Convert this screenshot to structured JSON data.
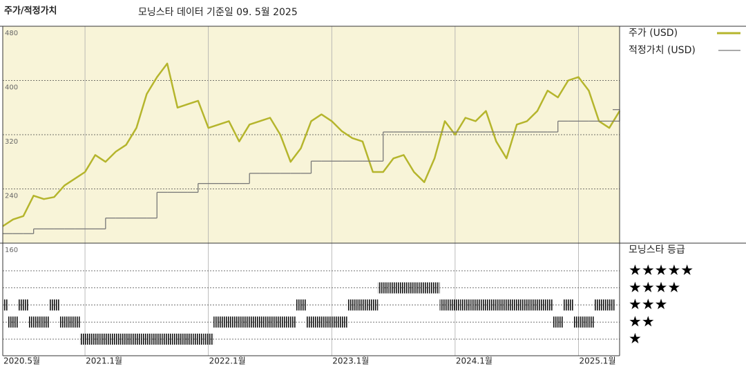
{
  "chart_data": {
    "type": "line",
    "title": "주가/적정가치",
    "subtitle": "모닝스타 데이터 기준일 09. 5월 2025",
    "x": [
      "2020-05",
      "2020-06",
      "2020-07",
      "2020-08",
      "2020-09",
      "2020-10",
      "2020-11",
      "2020-12",
      "2021-01",
      "2021-02",
      "2021-03",
      "2021-04",
      "2021-05",
      "2021-06",
      "2021-07",
      "2021-08",
      "2021-09",
      "2021-10",
      "2021-11",
      "2021-12",
      "2022-01",
      "2022-02",
      "2022-03",
      "2022-04",
      "2022-05",
      "2022-06",
      "2022-07",
      "2022-08",
      "2022-09",
      "2022-10",
      "2022-11",
      "2022-12",
      "2023-01",
      "2023-02",
      "2023-03",
      "2023-04",
      "2023-05",
      "2023-06",
      "2023-07",
      "2023-08",
      "2023-09",
      "2023-10",
      "2023-11",
      "2023-12",
      "2024-01",
      "2024-02",
      "2024-03",
      "2024-04",
      "2024-05",
      "2024-06",
      "2024-07",
      "2024-08",
      "2024-09",
      "2024-10",
      "2024-11",
      "2024-12",
      "2025-01",
      "2025-02",
      "2025-03",
      "2025-04",
      "2025-05"
    ],
    "series": [
      {
        "name": "주가 (USD)",
        "color": "#b5b52c",
        "values": [
          185,
          195,
          200,
          230,
          225,
          228,
          245,
          255,
          265,
          290,
          280,
          295,
          305,
          330,
          380,
          405,
          425,
          360,
          365,
          370,
          330,
          335,
          340,
          310,
          335,
          340,
          345,
          320,
          280,
          300,
          340,
          350,
          340,
          325,
          315,
          310,
          265,
          265,
          285,
          290,
          265,
          250,
          285,
          340,
          320,
          345,
          340,
          355,
          310,
          285,
          335,
          340,
          355,
          385,
          375,
          400,
          405,
          385,
          340,
          330,
          355
        ]
      },
      {
        "name": "적정가치 (USD)",
        "color": "#777777",
        "step": true,
        "values": [
          174,
          174,
          174,
          181,
          181,
          181,
          181,
          181,
          181,
          181,
          197,
          197,
          197,
          197,
          197,
          235,
          235,
          235,
          235,
          248,
          248,
          248,
          248,
          248,
          263,
          263,
          263,
          263,
          263,
          263,
          281,
          281,
          281,
          281,
          281,
          281,
          281,
          324,
          324,
          324,
          324,
          324,
          324,
          324,
          324,
          324,
          324,
          324,
          324,
          324,
          324,
          324,
          324,
          324,
          340,
          340,
          340,
          340,
          340,
          340,
          357
        ]
      }
    ],
    "ylim": [
      160,
      480
    ],
    "yticks": [
      160,
      240,
      320,
      400,
      480
    ],
    "xticks": [
      {
        "value": "2020-05",
        "label": "2020.5월"
      },
      {
        "value": "2021-01",
        "label": "2021.1월"
      },
      {
        "value": "2022-01",
        "label": "2022.1월"
      },
      {
        "value": "2023-01",
        "label": "2023.1월"
      },
      {
        "value": "2024-01",
        "label": "2024.1월"
      },
      {
        "value": "2025-01",
        "label": "2025.1월"
      }
    ],
    "grid": true,
    "background": "#f8f4d8",
    "rating_title": "모닝스타 등급",
    "rating_levels": [
      {
        "value": 5,
        "label": "★★★★★"
      },
      {
        "value": 4,
        "label": "★★★★"
      },
      {
        "value": 3,
        "label": "★★★"
      },
      {
        "value": 2,
        "label": "★★"
      },
      {
        "value": 1,
        "label": "★"
      }
    ],
    "ratings": [
      3,
      2,
      3,
      2,
      2,
      3,
      2,
      2,
      1,
      1,
      1,
      1,
      1,
      1,
      1,
      1,
      1,
      1,
      1,
      1,
      1,
      2,
      2,
      2,
      2,
      2,
      2,
      2,
      2,
      3,
      2,
      2,
      2,
      2,
      3,
      3,
      3,
      4,
      4,
      4,
      4,
      4,
      4,
      3,
      3,
      3,
      3,
      3,
      3,
      3,
      3,
      3,
      3,
      3,
      2,
      3,
      2,
      2,
      3,
      3,
      3
    ]
  }
}
